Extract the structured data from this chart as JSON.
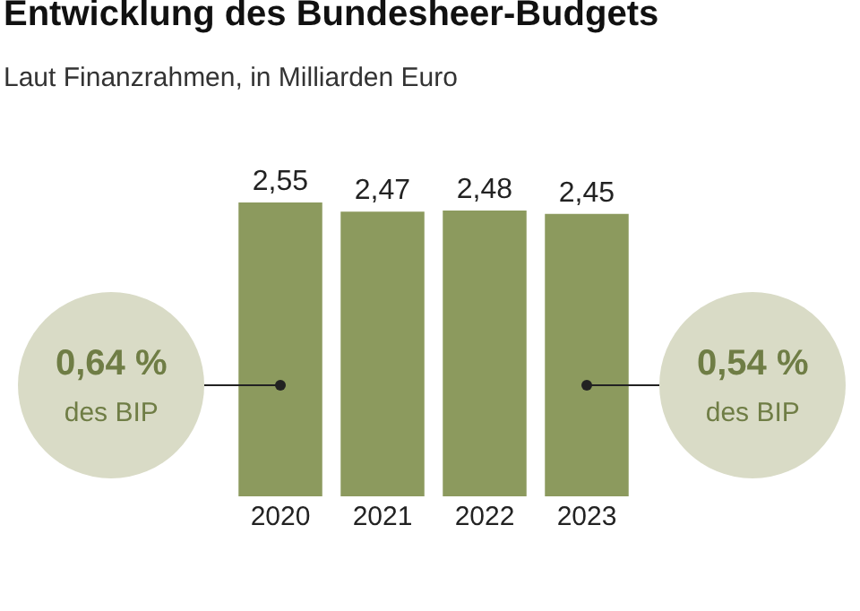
{
  "chart_data": {
    "type": "bar",
    "title": "Entwicklung des Bundesheer-Budgets",
    "subtitle": "Laut Finanzrahmen, in Milliarden Euro",
    "categories": [
      "2020",
      "2021",
      "2022",
      "2023"
    ],
    "values": [
      2.55,
      2.47,
      2.48,
      2.45
    ],
    "color": "#8c9a5e",
    "value_labels": [
      "2,55",
      "2,47",
      "2,48",
      "2,45"
    ],
    "annotations": [
      "0,64 %\ndes BIP",
      "0,54 %\ndes BIP"
    ]
  }
}
